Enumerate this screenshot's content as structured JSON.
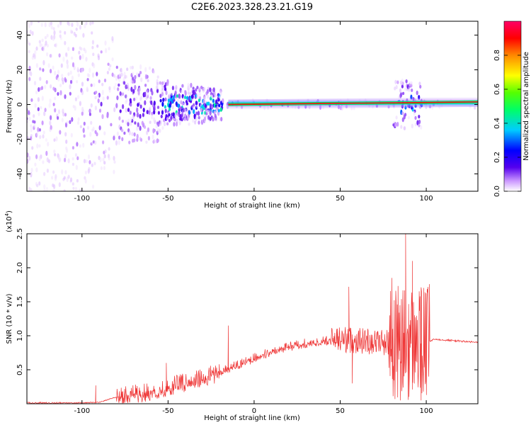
{
  "page": {
    "title": "C2E6.2023.328.23.21.G19"
  },
  "chart_data": [
    {
      "type": "heatmap",
      "title": "C2E6.2023.328.23.21.G19",
      "xlabel": "Height of straight line (km)",
      "ylabel": "Frequency (Hz)",
      "xlim": [
        -132,
        130
      ],
      "ylim": [
        -50,
        48
      ],
      "xticks": [
        -100,
        -50,
        0,
        50,
        100
      ],
      "yticks": [
        -40,
        -20,
        0,
        20,
        40
      ],
      "grid": false,
      "colorbar": {
        "label": "Normalized spectral amplitude",
        "range": [
          0,
          1
        ],
        "ticks": [
          "0.0",
          "0.2",
          "0.4",
          "0.6",
          "0.8"
        ],
        "colormap": [
          "#ffffff",
          "#cc99ff",
          "#5500ee",
          "#0000ff",
          "#00ccff",
          "#00ff66",
          "#55ff00",
          "#ffff00",
          "#ff8800",
          "#ff0000",
          "#ff0066"
        ]
      },
      "carrier": {
        "x_start": -15,
        "x_end": 130,
        "y_start": 0,
        "y_end": 1.5
      }
    },
    {
      "type": "line",
      "xlabel": "Height of straight line (km)",
      "ylabel": "SNR (10 * v/v)",
      "scale_label": "(x10",
      "scale_exp": "4",
      "scale_close": ")",
      "xlim": [
        -132,
        130
      ],
      "ylim": [
        0,
        2.5
      ],
      "xticks": [
        -100,
        -50,
        0,
        50,
        100
      ],
      "yticks": [
        0.5,
        1.0,
        1.5,
        2.0,
        2.5
      ],
      "color": "#ee3333",
      "grid": false,
      "baseline": {
        "x": [
          -132,
          -90,
          -80,
          -70,
          -60,
          -50,
          -40,
          -30,
          -20,
          -10,
          0,
          10,
          20,
          30,
          40,
          50,
          60,
          70,
          80,
          90,
          100,
          105,
          130
        ],
        "y": [
          0.0,
          0.02,
          0.1,
          0.16,
          0.2,
          0.27,
          0.33,
          0.4,
          0.48,
          0.58,
          0.68,
          0.78,
          0.85,
          0.9,
          0.93,
          0.95,
          0.93,
          0.92,
          0.9,
          0.88,
          0.9,
          0.95,
          0.9
        ]
      },
      "spikes": [
        {
          "x": -92,
          "y": 0.27
        },
        {
          "x": -51,
          "y": 0.6
        },
        {
          "x": -15,
          "y": 1.15
        },
        {
          "x": 55,
          "y": 1.72
        },
        {
          "x": 57,
          "y": 0.3
        },
        {
          "x": 80,
          "y": 1.85
        },
        {
          "x": 85,
          "y": 0.05
        },
        {
          "x": 88,
          "y": 2.5
        },
        {
          "x": 90,
          "y": 0.1
        },
        {
          "x": 92,
          "y": 2.1
        },
        {
          "x": 97,
          "y": 0.05
        },
        {
          "x": 101,
          "y": 1.5
        }
      ]
    }
  ]
}
